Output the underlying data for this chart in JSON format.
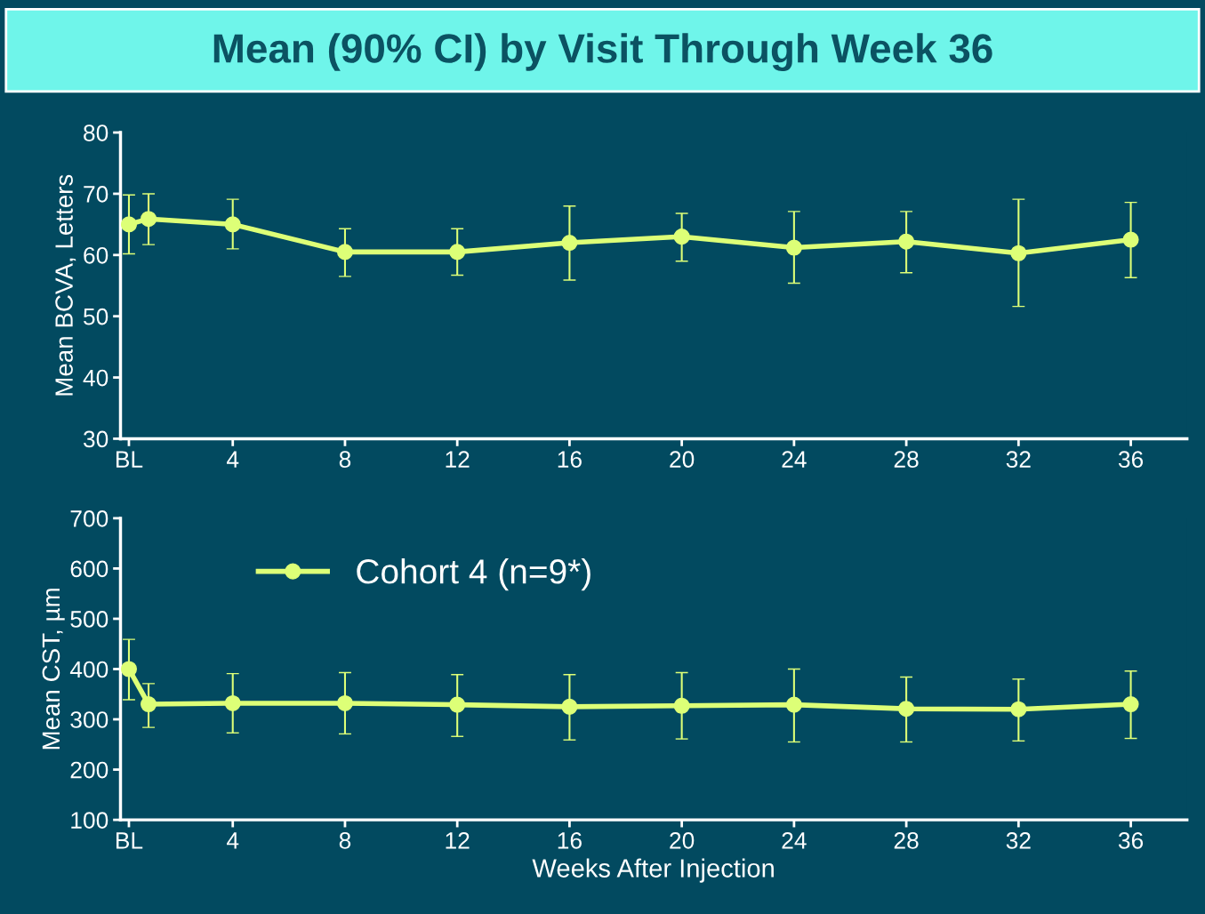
{
  "chart_data": [
    {
      "type": "line",
      "title": "Mean (90% CI) by Visit Through Week 36",
      "ylabel": "Mean BCVA, Letters",
      "x": [
        0.3,
        1,
        4,
        8,
        12,
        16,
        20,
        24,
        28,
        32,
        36
      ],
      "xlim": [
        0,
        38
      ],
      "xticks": [
        {
          "value": 0.3,
          "label": "BL"
        },
        4,
        8,
        12,
        16,
        20,
        24,
        28,
        32,
        36
      ],
      "ylim": [
        30,
        80
      ],
      "yticks": [
        30,
        40,
        50,
        60,
        70,
        80
      ],
      "grid": false,
      "legend": false,
      "marker": "circle",
      "line_style": "solid",
      "series": [
        {
          "color": "#ddff77",
          "values": [
            65.0,
            65.9,
            65.0,
            60.5,
            60.5,
            62.0,
            63.0,
            61.2,
            62.2,
            60.3,
            62.5
          ],
          "errors": [
            [
              60.2,
              69.8
            ],
            [
              61.7,
              70.0
            ],
            [
              61.0,
              69.1
            ],
            [
              56.5,
              64.3
            ],
            [
              56.7,
              64.3
            ],
            [
              55.9,
              68.0
            ],
            [
              59.0,
              66.8
            ],
            [
              55.4,
              67.1
            ],
            [
              57.1,
              67.1
            ],
            [
              51.6,
              69.1
            ],
            [
              56.3,
              68.6
            ]
          ]
        }
      ]
    },
    {
      "type": "line",
      "ylabel": "Mean CST, µm",
      "xlabel": "Weeks After Injection",
      "x": [
        0.3,
        1,
        4,
        8,
        12,
        16,
        20,
        24,
        28,
        32,
        36
      ],
      "xlim": [
        0,
        38
      ],
      "xticks": [
        {
          "value": 0.3,
          "label": "BL"
        },
        4,
        8,
        12,
        16,
        20,
        24,
        28,
        32,
        36
      ],
      "ylim": [
        100,
        700
      ],
      "yticks": [
        100,
        200,
        300,
        400,
        500,
        600,
        700
      ],
      "grid": false,
      "legend": "top left",
      "marker": "circle",
      "line_style": "solid",
      "series": [
        {
          "name": "Cohort 4 (n=9*)",
          "color": "#ddff77",
          "values": [
            400,
            330,
            332,
            332,
            329,
            325,
            327,
            329,
            321,
            320,
            330
          ],
          "errors": [
            [
              339,
              459
            ],
            [
              284,
              371
            ],
            [
              273,
              391
            ],
            [
              271,
              393
            ],
            [
              266,
              389
            ],
            [
              259,
              389
            ],
            [
              261,
              393
            ],
            [
              255,
              400
            ],
            [
              255,
              384
            ],
            [
              257,
              380
            ],
            [
              262,
              396
            ]
          ]
        }
      ]
    }
  ]
}
